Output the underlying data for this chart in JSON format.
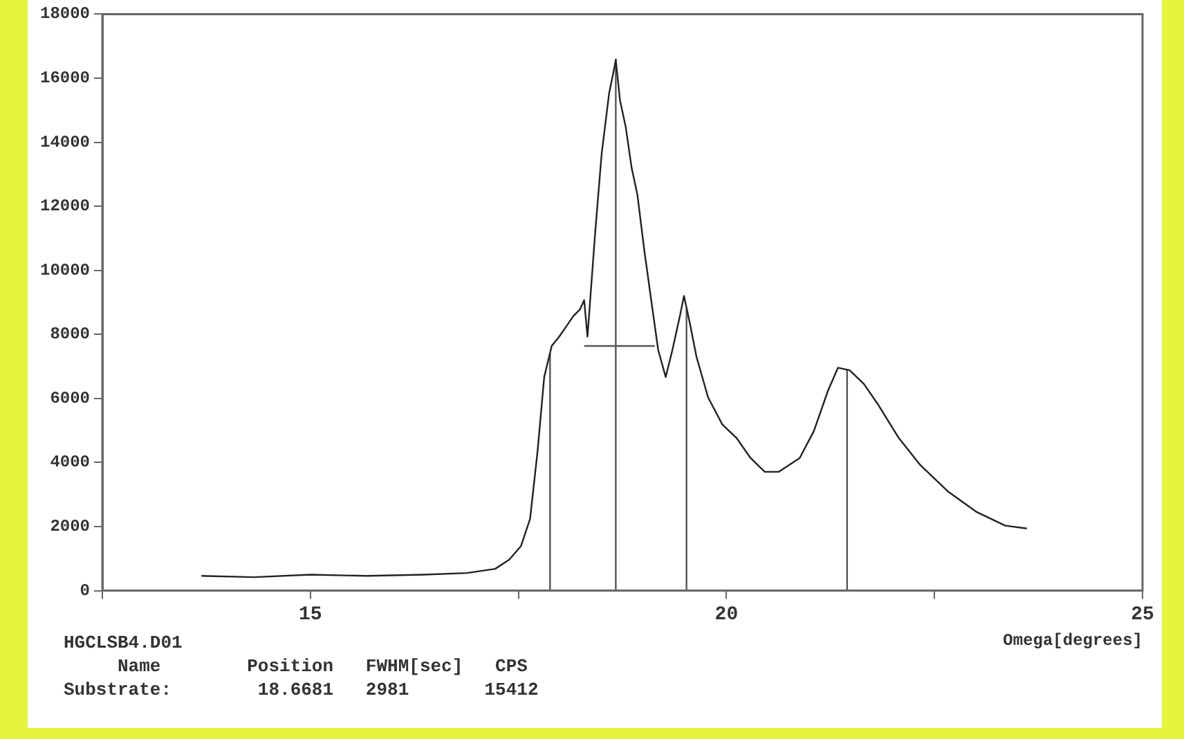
{
  "chart_data": {
    "type": "line",
    "xlabel": "Omega[degrees]",
    "xlim": [
      12.5,
      25
    ],
    "xticks": [
      {
        "value": 12.5,
        "label": null
      },
      15,
      {
        "value": 17.5,
        "label": null
      },
      20,
      {
        "value": 22.5,
        "label": null
      },
      25
    ],
    "ylim": [
      0,
      18000
    ],
    "yticks": [
      0,
      2000,
      4000,
      6000,
      8000,
      10000,
      12000,
      14000,
      16000,
      18000
    ],
    "grid": false,
    "legend": false,
    "marker": "none",
    "line_style": "solid",
    "series": [
      {
        "color": "#222222",
        "x": [
          13.69,
          14.32,
          15.0,
          15.68,
          16.36,
          16.88,
          17.22,
          17.39,
          17.53,
          17.64,
          17.73,
          17.81,
          17.9,
          17.99,
          18.07,
          18.16,
          18.24,
          18.29,
          18.33,
          18.42,
          18.5,
          18.59,
          18.64,
          18.67,
          18.72,
          18.79,
          18.86,
          18.93,
          19.01,
          19.1,
          19.18,
          19.27,
          19.35,
          19.44,
          19.49,
          19.56,
          19.64,
          19.78,
          19.95,
          20.12,
          20.29,
          20.46,
          20.63,
          20.88,
          21.05,
          21.22,
          21.34,
          21.48,
          21.65,
          21.82,
          22.07,
          22.33,
          22.67,
          23.01,
          23.35,
          23.61
        ],
        "values": [
          460,
          420,
          500,
          460,
          500,
          550,
          680,
          970,
          1390,
          2240,
          4350,
          6670,
          7640,
          7930,
          8230,
          8570,
          8780,
          9070,
          7930,
          11100,
          13630,
          15530,
          16160,
          16580,
          15320,
          14470,
          13210,
          12360,
          10680,
          8990,
          7510,
          6670,
          7510,
          8570,
          9200,
          8350,
          7300,
          6030,
          5190,
          4770,
          4140,
          3710,
          3710,
          4140,
          4980,
          6240,
          6960,
          6880,
          6460,
          5820,
          4770,
          3920,
          3080,
          2450,
          2030,
          1940
        ]
      },
      {
        "color": "#555555",
        "x": [
          17.88,
          17.88
        ],
        "values": [
          0,
          7400
        ]
      },
      {
        "color": "#555555",
        "x": [
          18.67,
          18.67
        ],
        "values": [
          0,
          16600
        ]
      },
      {
        "color": "#555555",
        "x": [
          19.52,
          19.52
        ],
        "values": [
          0,
          8800
        ]
      },
      {
        "color": "#555555",
        "x": [
          21.45,
          21.45
        ],
        "values": [
          0,
          6900
        ]
      },
      {
        "color": "#555555",
        "x": [
          18.29,
          19.14
        ],
        "values": [
          7640,
          7640
        ]
      }
    ],
    "annotations": [
      "HGCLSB4.D01",
      "     Name        Position   FWHM[sec]   CPS",
      "Substrate:        18.6681   2981       15412"
    ]
  }
}
